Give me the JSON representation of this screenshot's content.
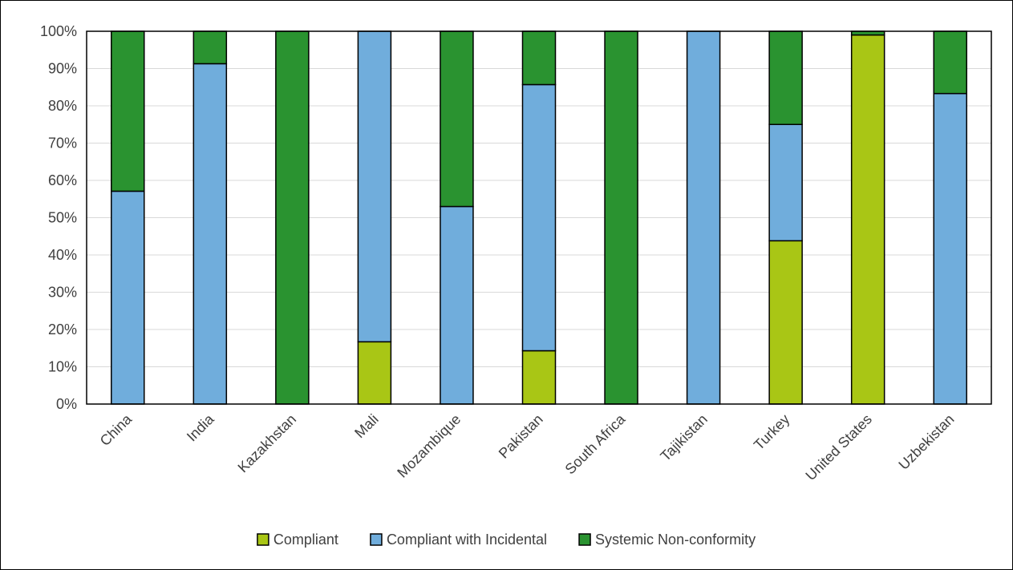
{
  "chart_data": {
    "type": "bar",
    "stacked": true,
    "title": "",
    "xlabel": "",
    "ylabel": "",
    "ylim": [
      0,
      1
    ],
    "y_ticks": [
      "0%",
      "10%",
      "20%",
      "30%",
      "40%",
      "50%",
      "60%",
      "70%",
      "80%",
      "90%",
      "100%"
    ],
    "grid": true,
    "legend_position": "bottom",
    "categories": [
      "China",
      "India",
      "Kazakhstan",
      "Mali",
      "Mozambique",
      "Pakistan",
      "South Africa",
      "Tajikistan",
      "Turkey",
      "United States",
      "Uzbekistan"
    ],
    "series": [
      {
        "name": "Compliant",
        "color": "#a9c615",
        "values": [
          0,
          0,
          0,
          0.167,
          0,
          0.143,
          0,
          0,
          0.438,
          0.99,
          0
        ]
      },
      {
        "name": "Compliant with Incidental",
        "color": "#70addc",
        "values": [
          0.571,
          0.913,
          0,
          0.833,
          0.53,
          0.714,
          0,
          1.0,
          0.312,
          0,
          0.833
        ]
      },
      {
        "name": "Systemic Non-conformity",
        "color": "#2a9330",
        "values": [
          0.429,
          0.087,
          1.0,
          0,
          0.47,
          0.143,
          1.0,
          0,
          0.25,
          0.01,
          0.167
        ]
      }
    ]
  }
}
